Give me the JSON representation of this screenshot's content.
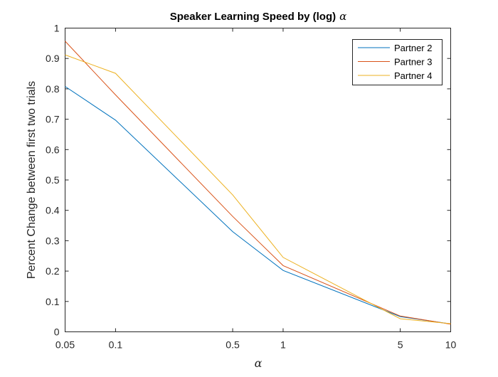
{
  "chart_data": {
    "type": "line",
    "title": "Speaker Learning Speed by (log)",
    "title_symbol": "α",
    "xlabel": "α",
    "ylabel": "Percent Change between first two trials",
    "x_scale": "log",
    "x": [
      0.05,
      0.1,
      0.5,
      1,
      5,
      10
    ],
    "xticks": [
      "0.05",
      "0.1",
      "0.5",
      "1",
      "5",
      "10"
    ],
    "xlim": [
      0.05,
      10
    ],
    "yticks": [
      "0",
      "0.1",
      "0.2",
      "0.3",
      "0.4",
      "0.5",
      "0.6",
      "0.7",
      "0.8",
      "0.9",
      "1"
    ],
    "ylim": [
      0,
      1
    ],
    "grid": false,
    "legend_position": "top-right",
    "series": [
      {
        "name": "Partner 2",
        "color": "#0072BD",
        "values": [
          0.808,
          0.697,
          0.33,
          0.202,
          0.05,
          0.026
        ]
      },
      {
        "name": "Partner 3",
        "color": "#D95319",
        "values": [
          0.957,
          0.78,
          0.38,
          0.218,
          0.052,
          0.025
        ]
      },
      {
        "name": "Partner 4",
        "color": "#EDB120",
        "values": [
          0.912,
          0.851,
          0.451,
          0.245,
          0.043,
          0.027
        ]
      }
    ]
  }
}
